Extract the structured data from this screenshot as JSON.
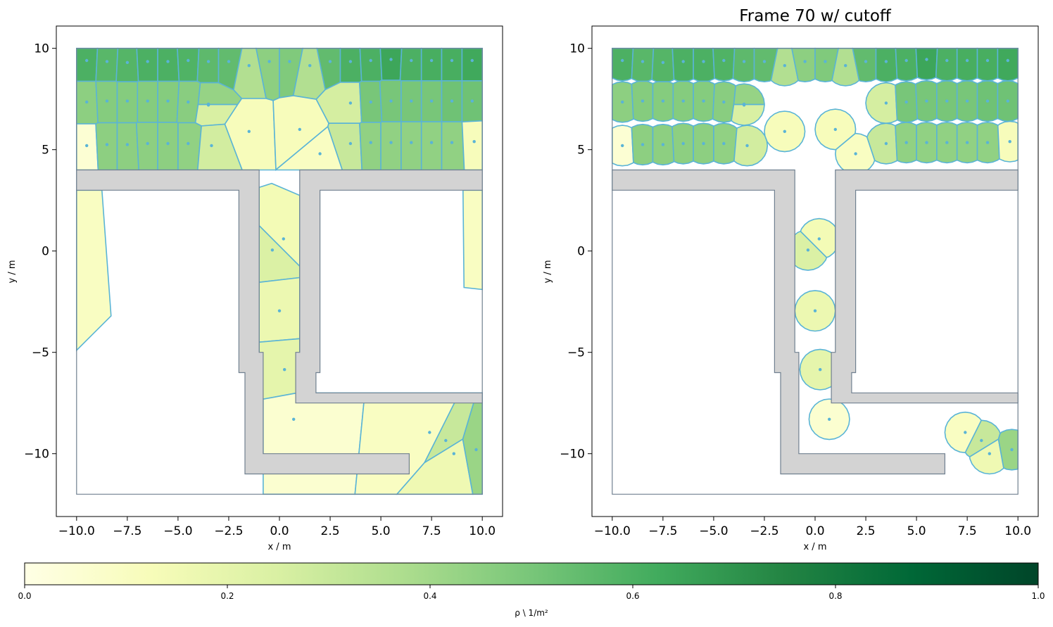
{
  "chart_data": [
    {
      "type": "voronoi-density",
      "title": "",
      "xlabel": "x / m",
      "ylabel": "y / m",
      "xlim": [
        -11,
        11
      ],
      "ylim": [
        -13.1,
        11.1
      ],
      "xticks": [
        -10.0,
        -7.5,
        -5.0,
        -2.5,
        0.0,
        2.5,
        5.0,
        7.5,
        10.0
      ],
      "xtick_labels": [
        "−10.0",
        "−7.5",
        "−5.0",
        "−2.5",
        "0.0",
        "2.5",
        "5.0",
        "7.5",
        "10.0"
      ],
      "yticks": [
        10,
        5,
        0,
        -5,
        -10
      ],
      "ytick_labels": [
        "10",
        "5",
        "0",
        "−5",
        "−10"
      ],
      "cutoff": false,
      "geometry": {
        "outer": [
          [
            -10,
            10
          ],
          [
            10,
            10
          ],
          [
            10,
            -12
          ],
          [
            -10,
            -12
          ]
        ],
        "walls": [
          [
            [
              -10,
              4
            ],
            [
              -1,
              4
            ],
            [
              -1,
              -5
            ],
            [
              -0.8,
              -5
            ],
            [
              -0.8,
              -10
            ],
            [
              6.4,
              -10
            ],
            [
              6.4,
              -11
            ],
            [
              -1.7,
              -11
            ],
            [
              -1.7,
              -6
            ],
            [
              -2,
              -6
            ],
            [
              -2,
              3
            ],
            [
              -10,
              3
            ]
          ],
          [
            [
              1,
              4
            ],
            [
              10,
              4
            ],
            [
              10,
              3
            ],
            [
              2,
              3
            ],
            [
              2,
              -6
            ],
            [
              1.8,
              -6
            ],
            [
              1.8,
              -7
            ],
            [
              10,
              -7
            ],
            [
              10,
              -7.5
            ],
            [
              0.8,
              -7.5
            ],
            [
              0.8,
              -5
            ],
            [
              1,
              -5
            ]
          ]
        ]
      },
      "cells": [
        {
          "x": -9.5,
          "y": 9.4,
          "density": 0.6
        },
        {
          "x": -8.5,
          "y": 9.35,
          "density": 0.57
        },
        {
          "x": -7.5,
          "y": 9.3,
          "density": 0.58
        },
        {
          "x": -6.5,
          "y": 9.35,
          "density": 0.6
        },
        {
          "x": -5.5,
          "y": 9.35,
          "density": 0.6
        },
        {
          "x": -4.5,
          "y": 9.4,
          "density": 0.59
        },
        {
          "x": -3.5,
          "y": 9.35,
          "density": 0.56
        },
        {
          "x": -2.5,
          "y": 9.35,
          "density": 0.55
        },
        {
          "x": -1.5,
          "y": 9.15,
          "density": 0.36
        },
        {
          "x": -0.5,
          "y": 9.35,
          "density": 0.45
        },
        {
          "x": 0.5,
          "y": 9.35,
          "density": 0.48
        },
        {
          "x": 1.5,
          "y": 9.15,
          "density": 0.36
        },
        {
          "x": 2.5,
          "y": 9.35,
          "density": 0.55
        },
        {
          "x": 3.5,
          "y": 9.35,
          "density": 0.6
        },
        {
          "x": 4.5,
          "y": 9.4,
          "density": 0.6
        },
        {
          "x": 5.5,
          "y": 9.45,
          "density": 0.64
        },
        {
          "x": 6.5,
          "y": 9.4,
          "density": 0.6
        },
        {
          "x": 7.5,
          "y": 9.4,
          "density": 0.61
        },
        {
          "x": 8.5,
          "y": 9.4,
          "density": 0.61
        },
        {
          "x": 9.5,
          "y": 9.4,
          "density": 0.63
        },
        {
          "x": -9.5,
          "y": 7.35,
          "density": 0.45
        },
        {
          "x": -8.5,
          "y": 7.4,
          "density": 0.47
        },
        {
          "x": -7.5,
          "y": 7.4,
          "density": 0.47
        },
        {
          "x": -6.5,
          "y": 7.4,
          "density": 0.47
        },
        {
          "x": -5.5,
          "y": 7.4,
          "density": 0.47
        },
        {
          "x": -4.5,
          "y": 7.35,
          "density": 0.46
        },
        {
          "x": -3.5,
          "y": 7.25,
          "density": 0.43
        },
        {
          "x": -3.5,
          "y": 7.2,
          "density": 0.25
        },
        {
          "x": -1.5,
          "y": 5.9,
          "density": 0.12
        },
        {
          "x": 1.0,
          "y": 6.0,
          "density": 0.12
        },
        {
          "x": 3.5,
          "y": 7.3,
          "density": 0.26
        },
        {
          "x": 4.5,
          "y": 7.35,
          "density": 0.5
        },
        {
          "x": 5.5,
          "y": 7.4,
          "density": 0.5
        },
        {
          "x": 6.5,
          "y": 7.4,
          "density": 0.5
        },
        {
          "x": 7.5,
          "y": 7.4,
          "density": 0.5
        },
        {
          "x": 8.5,
          "y": 7.4,
          "density": 0.52
        },
        {
          "x": 9.5,
          "y": 7.4,
          "density": 0.52
        },
        {
          "x": -9.5,
          "y": 5.2,
          "density": 0.05
        },
        {
          "x": -8.5,
          "y": 5.25,
          "density": 0.45
        },
        {
          "x": -7.5,
          "y": 5.25,
          "density": 0.45
        },
        {
          "x": -6.5,
          "y": 5.3,
          "density": 0.45
        },
        {
          "x": -5.5,
          "y": 5.3,
          "density": 0.45
        },
        {
          "x": -4.5,
          "y": 5.3,
          "density": 0.44
        },
        {
          "x": -3.35,
          "y": 5.2,
          "density": 0.27
        },
        {
          "x": 2.0,
          "y": 4.8,
          "density": 0.1
        },
        {
          "x": 3.5,
          "y": 5.3,
          "density": 0.3
        },
        {
          "x": 4.5,
          "y": 5.35,
          "density": 0.44
        },
        {
          "x": 5.5,
          "y": 5.35,
          "density": 0.44
        },
        {
          "x": 6.5,
          "y": 5.35,
          "density": 0.44
        },
        {
          "x": 7.5,
          "y": 5.35,
          "density": 0.44
        },
        {
          "x": 8.5,
          "y": 5.35,
          "density": 0.44
        },
        {
          "x": 9.6,
          "y": 5.4,
          "density": 0.12
        },
        {
          "x": 0.2,
          "y": 0.6,
          "density": 0.14
        },
        {
          "x": -0.35,
          "y": 0.05,
          "density": 0.24
        },
        {
          "x": 0.0,
          "y": -2.95,
          "density": 0.17
        },
        {
          "x": 0.25,
          "y": -5.85,
          "density": 0.2
        },
        {
          "x": 0.7,
          "y": -8.3,
          "density": 0.06
        },
        {
          "x": 7.4,
          "y": -8.95,
          "density": 0.1
        },
        {
          "x": 8.2,
          "y": -9.35,
          "density": 0.3
        },
        {
          "x": 8.6,
          "y": -10.0,
          "density": 0.16
        },
        {
          "x": 9.7,
          "y": -9.8,
          "density": 0.42
        }
      ],
      "regions": [
        {
          "density": 0.1,
          "points": [
            [
              -10,
              3
            ],
            [
              -8.75,
              3
            ],
            [
              -8.3,
              -3.2
            ],
            [
              -10,
              -4.9
            ]
          ]
        },
        {
          "density": 0.1,
          "points": [
            [
              9.05,
              3
            ],
            [
              10,
              3
            ],
            [
              10,
              -1.9
            ],
            [
              9.1,
              -1.8
            ]
          ]
        }
      ]
    },
    {
      "type": "voronoi-density",
      "title": "Frame 70 w/ cutoff",
      "xlabel": "x / m",
      "ylabel": "y / m",
      "xlim": [
        -11,
        11
      ],
      "ylim": [
        -13.1,
        11.1
      ],
      "xticks": [
        -10.0,
        -7.5,
        -5.0,
        -2.5,
        0.0,
        2.5,
        5.0,
        7.5,
        10.0
      ],
      "xtick_labels": [
        "−10.0",
        "−7.5",
        "−5.0",
        "−2.5",
        "0.0",
        "2.5",
        "5.0",
        "7.5",
        "10.0"
      ],
      "yticks": [
        10,
        5,
        0,
        -5,
        -10
      ],
      "ytick_labels": [
        "10",
        "5",
        "0",
        "−5",
        "−10"
      ],
      "cutoff": true,
      "cutoff_radius": 1.0
    }
  ],
  "colorbar": {
    "colormap": "YlGn",
    "range": [
      0.0,
      1.0
    ],
    "ticks": [
      0.0,
      0.2,
      0.4,
      0.6,
      0.8,
      1.0
    ],
    "tick_labels": [
      "0.0",
      "0.2",
      "0.4",
      "0.6",
      "0.8",
      "1.0"
    ],
    "label": "ρ \\ 1/m²"
  },
  "colors": {
    "edge": "#5ab4d6",
    "wall_fill": "#d3d3d3",
    "wall_edge": "#708090",
    "point": "#5ab4d6"
  }
}
